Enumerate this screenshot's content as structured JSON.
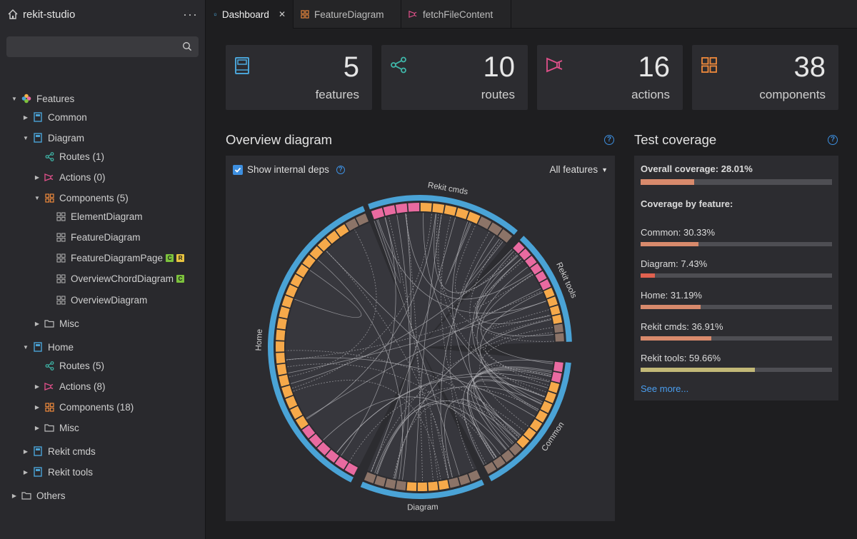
{
  "app": {
    "title": "rekit-studio"
  },
  "sidebar": {
    "search": {
      "placeholder": "",
      "value": ""
    },
    "tree": {
      "features": "Features",
      "common": "Common",
      "diagram": "Diagram",
      "diagram_routes": "Routes (1)",
      "diagram_actions": "Actions (0)",
      "diagram_components": "Components (5)",
      "element_diagram": "ElementDiagram",
      "feature_diagram": "FeatureDiagram",
      "feature_diagram_page": "FeatureDiagramPage",
      "overview_chord_diagram": "OverviewChordDiagram",
      "overview_diagram": "OverviewDiagram",
      "diagram_misc": "Misc",
      "home": "Home",
      "home_routes": "Routes (5)",
      "home_actions": "Actions (8)",
      "home_components": "Components (18)",
      "home_misc": "Misc",
      "rekit_cmds": "Rekit cmds",
      "rekit_tools": "Rekit tools",
      "others": "Others",
      "badge_c": "C",
      "badge_r": "R"
    }
  },
  "tabs": [
    {
      "label": "Dashboard",
      "close": "✕"
    },
    {
      "label": "FeatureDiagram"
    },
    {
      "label": "fetchFileContent"
    }
  ],
  "stats": [
    {
      "value": "5",
      "label": "features"
    },
    {
      "value": "10",
      "label": "routes"
    },
    {
      "value": "16",
      "label": "actions"
    },
    {
      "value": "38",
      "label": "components"
    }
  ],
  "overview": {
    "title": "Overview diagram",
    "show_internal": "Show internal deps",
    "filter": "All features",
    "arc_labels": [
      "Rekit cmds",
      "Rekit tools",
      "Common",
      "Diagram",
      "Home"
    ]
  },
  "coverage": {
    "title": "Test coverage",
    "overall": "Overall coverage: 28.01%",
    "overall_value": 28.01,
    "by_feature": "Coverage by feature:",
    "items": [
      {
        "label": "Common: 30.33%",
        "value": 30.33,
        "color": "#d88a6c"
      },
      {
        "label": "Diagram: 7.43%",
        "value": 7.43,
        "color": "#e0614f"
      },
      {
        "label": "Home: 31.19%",
        "value": 31.19,
        "color": "#d88a6c"
      },
      {
        "label": "Rekit cmds: 36.91%",
        "value": 36.91,
        "color": "#d88a6c"
      },
      {
        "label": "Rekit tools: 59.66%",
        "value": 59.66,
        "color": "#c2b877"
      }
    ],
    "see_more": "See more..."
  },
  "colors": {
    "accent": "#3d8fe0",
    "ring": "#4aa3d6",
    "orange": "#f6a94a",
    "pink": "#e96aa0",
    "brown": "#8c7468"
  }
}
